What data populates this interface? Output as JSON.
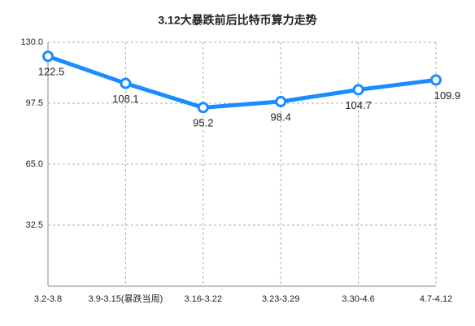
{
  "chart_data": {
    "type": "line",
    "title": "3.12大暴跌前后比特币算力走势",
    "categories": [
      "3.2-3.8",
      "3.9-3.15(暴跌当周)",
      "3.16-3.22",
      "3.23-3.29",
      "3.30-4.6",
      "4.7-4.12"
    ],
    "series": [
      {
        "color": "#1a8cff",
        "values": [
          122.5,
          108.1,
          95.2,
          98.4,
          104.7,
          109.9
        ]
      }
    ],
    "ylim": [
      0,
      130
    ],
    "yticks": [
      {
        "value": 32.5,
        "label": "32.5"
      },
      {
        "value": 65,
        "label": "65.0"
      },
      {
        "value": 97.5,
        "label": "97.5"
      },
      {
        "value": 130,
        "label": "130.0"
      }
    ],
    "grid": true
  }
}
